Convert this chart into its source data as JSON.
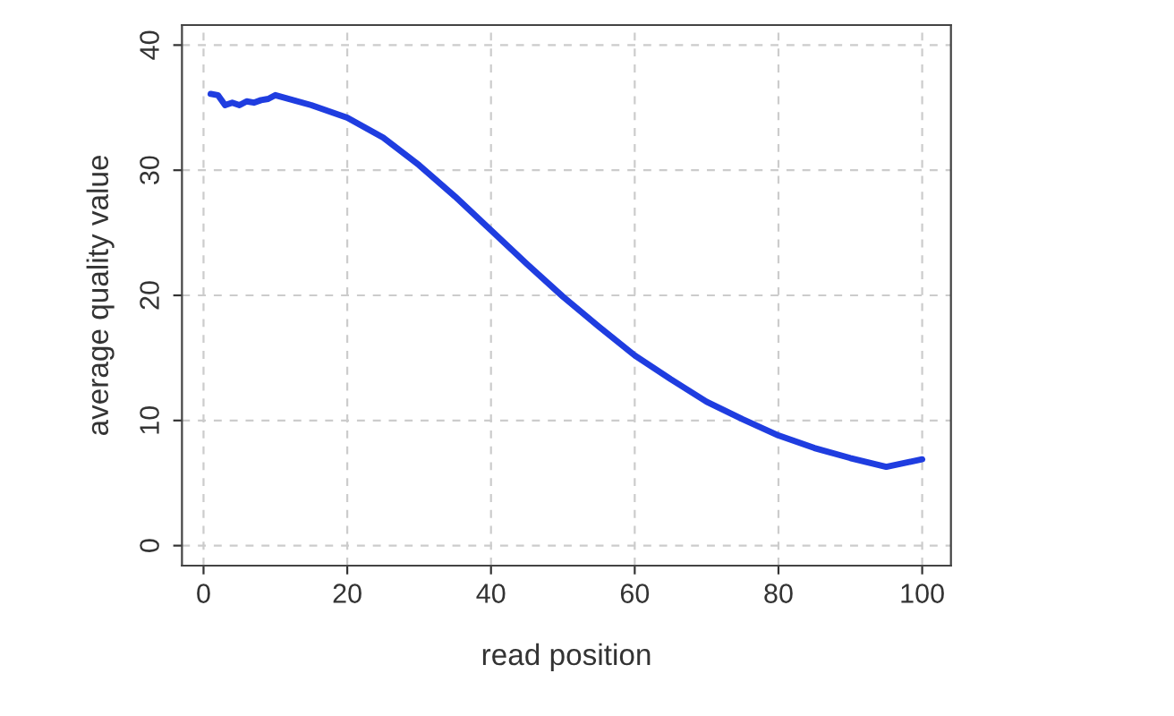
{
  "chart_data": {
    "type": "line",
    "xlabel": "read position",
    "ylabel": "average quality value",
    "x": [
      1,
      2,
      3,
      4,
      5,
      6,
      7,
      8,
      9,
      10,
      15,
      20,
      25,
      30,
      35,
      40,
      45,
      50,
      55,
      60,
      65,
      70,
      75,
      80,
      85,
      90,
      95,
      100
    ],
    "series": [
      {
        "color": "#1f3de0",
        "values": [
          36.1,
          36.0,
          35.2,
          35.4,
          35.2,
          35.5,
          35.4,
          35.6,
          35.7,
          36.0,
          35.2,
          34.2,
          32.6,
          30.4,
          27.9,
          25.2,
          22.5,
          19.9,
          17.5,
          15.2,
          13.3,
          11.5,
          10.1,
          8.8,
          7.8,
          7.0,
          6.3,
          6.9
        ]
      }
    ],
    "xlim": [
      -3,
      104
    ],
    "ylim": [
      -1.6,
      41.6
    ],
    "xticks": [
      0,
      20,
      40,
      60,
      80,
      100
    ],
    "yticks": [
      0,
      10,
      20,
      30,
      40
    ],
    "grid": true,
    "line_style": "solid",
    "marker": "none"
  }
}
